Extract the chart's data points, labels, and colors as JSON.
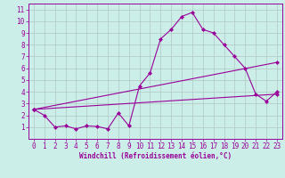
{
  "xlabel": "Windchill (Refroidissement éolien,°C)",
  "background_color": "#cceee8",
  "grid_color": "#b0c8c4",
  "line_color": "#990099",
  "xlim": [
    -0.5,
    23.5
  ],
  "ylim": [
    0,
    11.5
  ],
  "xticks": [
    0,
    1,
    2,
    3,
    4,
    5,
    6,
    7,
    8,
    9,
    10,
    11,
    12,
    13,
    14,
    15,
    16,
    17,
    18,
    19,
    20,
    21,
    22,
    23
  ],
  "yticks": [
    1,
    2,
    3,
    4,
    5,
    6,
    7,
    8,
    9,
    10,
    11
  ],
  "line1_x": [
    0,
    1,
    2,
    3,
    4,
    5,
    6,
    7,
    8,
    9,
    10,
    11,
    12,
    13,
    14,
    15,
    16,
    17,
    18,
    19,
    20,
    21,
    22,
    23
  ],
  "line1_y": [
    2.5,
    2.0,
    1.0,
    1.1,
    0.85,
    1.1,
    1.05,
    0.85,
    2.2,
    1.1,
    4.5,
    5.6,
    8.5,
    9.3,
    10.4,
    10.75,
    9.3,
    9.0,
    8.0,
    7.0,
    6.0,
    3.8,
    3.2,
    4.0
  ],
  "line2_x": [
    0,
    23
  ],
  "line2_y": [
    2.5,
    6.5
  ],
  "line3_x": [
    0,
    23
  ],
  "line3_y": [
    2.5,
    3.8
  ],
  "marker": "D",
  "markersize": 2.0,
  "linewidth": 0.8,
  "tick_fontsize": 5.5,
  "xlabel_fontsize": 5.5
}
